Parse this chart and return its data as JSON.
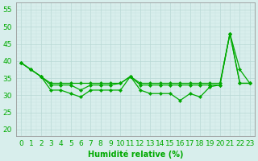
{
  "x": [
    0,
    1,
    2,
    3,
    4,
    5,
    6,
    7,
    8,
    9,
    10,
    11,
    12,
    13,
    14,
    15,
    16,
    17,
    18,
    19,
    20,
    21,
    22,
    23
  ],
  "line1_y": [
    39.5,
    37.5,
    35.5,
    33.5,
    33.5,
    33.5,
    33.5,
    33.5,
    33.5,
    33.5,
    33.5,
    35.5,
    33.5,
    33.5,
    33.5,
    33.5,
    33.5,
    33.5,
    33.5,
    33.5,
    33.5,
    48.0,
    33.5,
    33.5
  ],
  "line2_y": [
    39.5,
    37.5,
    35.5,
    33.0,
    33.0,
    33.0,
    31.5,
    33.0,
    33.0,
    33.0,
    33.5,
    35.5,
    33.0,
    33.0,
    33.0,
    33.0,
    33.0,
    33.0,
    33.0,
    33.0,
    33.0,
    48.0,
    37.5,
    33.5
  ],
  "line3_y": [
    39.5,
    37.5,
    35.5,
    31.5,
    31.5,
    30.5,
    29.5,
    31.5,
    31.5,
    31.5,
    31.5,
    35.5,
    31.5,
    30.5,
    30.5,
    30.5,
    28.5,
    30.5,
    29.5,
    32.5,
    33.0,
    48.0,
    33.5,
    33.5
  ],
  "bg_color": "#d8eeec",
  "grid_major_color": "#b8d8d4",
  "grid_minor_color": "#c8e4e0",
  "line_color": "#00aa00",
  "xlabel": "Humidité relative (%)",
  "yticks": [
    20,
    25,
    30,
    35,
    40,
    45,
    50,
    55
  ],
  "ylim": [
    18,
    57
  ],
  "xlim": [
    -0.5,
    23.5
  ],
  "xlabel_fontsize": 7,
  "tick_fontsize": 6.5,
  "marker_size": 2.2,
  "line_width": 0.9
}
